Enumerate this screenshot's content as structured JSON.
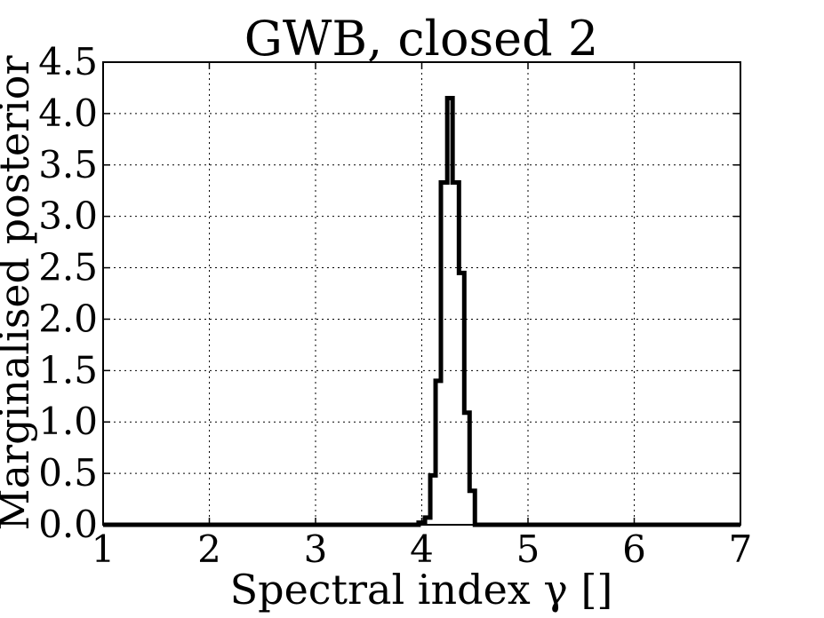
{
  "chart_data": {
    "type": "histogram",
    "title": "GWB, closed 2",
    "xlabel": "Spectral index γ []",
    "ylabel": "Marginalised posterior",
    "xlim": [
      1,
      7
    ],
    "ylim": [
      0,
      4.5
    ],
    "xticks": [
      "1",
      "2",
      "3",
      "4",
      "5",
      "6",
      "7"
    ],
    "yticks": [
      "0.0",
      "0.5",
      "1.0",
      "1.5",
      "2.0",
      "2.5",
      "3.0",
      "3.5",
      "4.0",
      "4.5"
    ],
    "grid": true,
    "line_color": "#000000",
    "steps": [
      {
        "x0": 1.0,
        "x1": 3.97,
        "y": 0.0
      },
      {
        "x0": 3.97,
        "x1": 4.03,
        "y": 0.02
      },
      {
        "x0": 4.03,
        "x1": 4.08,
        "y": 0.07
      },
      {
        "x0": 4.08,
        "x1": 4.13,
        "y": 0.48
      },
      {
        "x0": 4.13,
        "x1": 4.18,
        "y": 1.4
      },
      {
        "x0": 4.18,
        "x1": 4.24,
        "y": 3.33
      },
      {
        "x0": 4.24,
        "x1": 4.29,
        "y": 4.15
      },
      {
        "x0": 4.29,
        "x1": 4.35,
        "y": 3.33
      },
      {
        "x0": 4.35,
        "x1": 4.4,
        "y": 2.45
      },
      {
        "x0": 4.4,
        "x1": 4.45,
        "y": 1.09
      },
      {
        "x0": 4.45,
        "x1": 4.5,
        "y": 0.33
      },
      {
        "x0": 4.5,
        "x1": 7.0,
        "y": 0.0
      }
    ]
  }
}
